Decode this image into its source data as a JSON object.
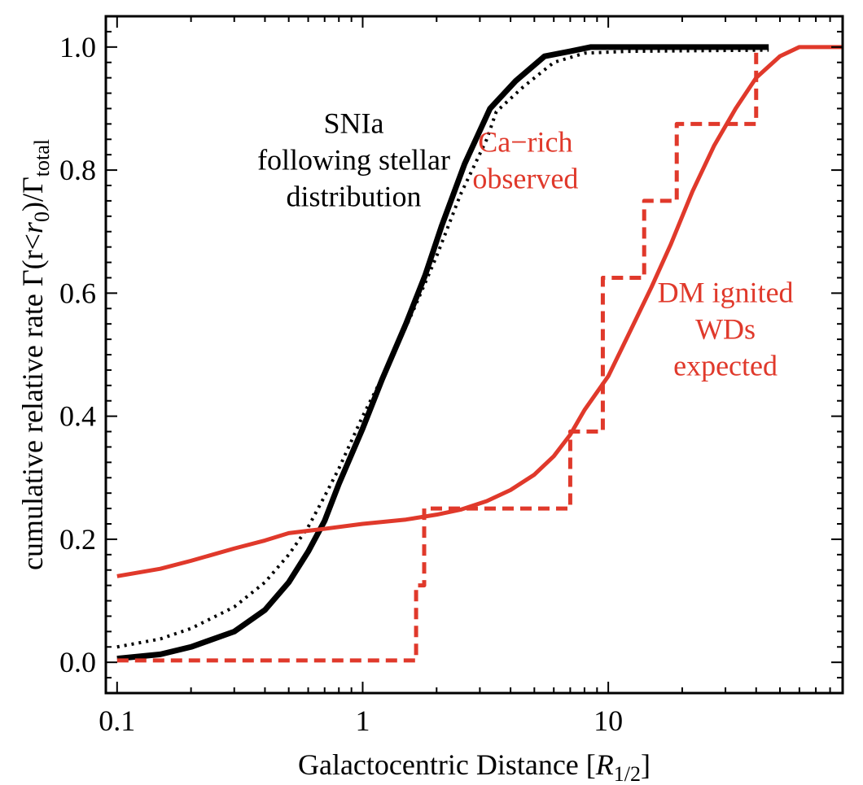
{
  "chart_data": {
    "type": "line",
    "xlabel": "Galactocentric Distance [R1/2]",
    "xlabel_parts": {
      "main": "Galactocentric Distance [",
      "var": "R",
      "sub": "1/2",
      "close": "]"
    },
    "ylabel": "cumulative relative rate Γ(r<r0)/Γtotal",
    "ylabel_parts": {
      "main": "cumulative relative rate Γ(r<",
      "var": "r",
      "sub": "0",
      "mid": ")/Γ",
      "sub2": "total"
    },
    "x_scale": "log",
    "xlim": [
      0.09,
      90
    ],
    "ylim": [
      -0.05,
      1.05
    ],
    "x_ticks": [
      {
        "value": 0.1,
        "label": "0.1"
      },
      {
        "value": 1,
        "label": "1"
      },
      {
        "value": 10,
        "label": "10"
      }
    ],
    "y_ticks": [
      {
        "value": 0.0,
        "label": "0.0"
      },
      {
        "value": 0.2,
        "label": "0.2"
      },
      {
        "value": 0.4,
        "label": "0.4"
      },
      {
        "value": 0.6,
        "label": "0.6"
      },
      {
        "value": 0.8,
        "label": "0.8"
      },
      {
        "value": 1.0,
        "label": "1.0"
      }
    ],
    "annotations": [
      {
        "id": "snia",
        "lines": [
          "SNIa",
          "following stellar",
          "distribution"
        ],
        "color": "#000000",
        "x": 0.92,
        "y": 0.86
      },
      {
        "id": "carich",
        "lines": [
          "Ca−rich",
          "observed"
        ],
        "color": "#e0392b",
        "x": 4.6,
        "y": 0.83
      },
      {
        "id": "dm",
        "lines": [
          "DM ignited",
          "WDs",
          "expected"
        ],
        "color": "#e0392b",
        "x": 30,
        "y": 0.585
      }
    ],
    "series": [
      {
        "style": "solid",
        "color": "#000000",
        "width": 7,
        "points": [
          [
            0.1,
            0.006
          ],
          [
            0.15,
            0.013
          ],
          [
            0.2,
            0.025
          ],
          [
            0.3,
            0.05
          ],
          [
            0.4,
            0.085
          ],
          [
            0.5,
            0.13
          ],
          [
            0.6,
            0.18
          ],
          [
            0.7,
            0.23
          ],
          [
            0.8,
            0.29
          ],
          [
            1.0,
            0.38
          ],
          [
            1.2,
            0.46
          ],
          [
            1.5,
            0.55
          ],
          [
            1.8,
            0.63
          ],
          [
            2.1,
            0.71
          ],
          [
            2.6,
            0.81
          ],
          [
            3.3,
            0.9
          ],
          [
            4.2,
            0.945
          ],
          [
            5.5,
            0.985
          ],
          [
            7,
            0.993
          ],
          [
            8.5,
            1.0
          ],
          [
            20,
            1.0
          ],
          [
            45,
            1.0
          ]
        ]
      },
      {
        "style": "dotted",
        "color": "#000000",
        "width": 4,
        "points": [
          [
            0.1,
            0.025
          ],
          [
            0.15,
            0.038
          ],
          [
            0.2,
            0.055
          ],
          [
            0.3,
            0.09
          ],
          [
            0.4,
            0.13
          ],
          [
            0.5,
            0.175
          ],
          [
            0.6,
            0.22
          ],
          [
            0.7,
            0.27
          ],
          [
            0.8,
            0.315
          ],
          [
            1.0,
            0.4
          ],
          [
            1.3,
            0.49
          ],
          [
            1.6,
            0.57
          ],
          [
            2.0,
            0.66
          ],
          [
            2.5,
            0.76
          ],
          [
            3.2,
            0.85
          ],
          [
            3.5,
            0.895
          ],
          [
            4.5,
            0.935
          ],
          [
            6,
            0.975
          ],
          [
            8,
            0.99
          ],
          [
            12,
            0.993
          ],
          [
            45,
            0.995
          ]
        ]
      },
      {
        "style": "solid",
        "color": "#e0392b",
        "width": 5,
        "points": [
          [
            0.1,
            0.14
          ],
          [
            0.15,
            0.152
          ],
          [
            0.2,
            0.165
          ],
          [
            0.3,
            0.185
          ],
          [
            0.4,
            0.198
          ],
          [
            0.5,
            0.21
          ],
          [
            0.7,
            0.217
          ],
          [
            1.0,
            0.225
          ],
          [
            1.5,
            0.232
          ],
          [
            2.0,
            0.24
          ],
          [
            2.5,
            0.248
          ],
          [
            3.2,
            0.262
          ],
          [
            4,
            0.28
          ],
          [
            5,
            0.305
          ],
          [
            6,
            0.335
          ],
          [
            7,
            0.37
          ],
          [
            8,
            0.41
          ],
          [
            10,
            0.465
          ],
          [
            12,
            0.53
          ],
          [
            15,
            0.61
          ],
          [
            18,
            0.68
          ],
          [
            22,
            0.765
          ],
          [
            27,
            0.84
          ],
          [
            33,
            0.9
          ],
          [
            40,
            0.95
          ],
          [
            50,
            0.985
          ],
          [
            60,
            1.0
          ],
          [
            90,
            1.0
          ]
        ]
      },
      {
        "style": "dashed",
        "color": "#e0392b",
        "width": 5,
        "points": [
          [
            0.1,
            0.003
          ],
          [
            1.65,
            0.003
          ],
          [
            1.65,
            0.125
          ],
          [
            1.78,
            0.125
          ],
          [
            1.78,
            0.25
          ],
          [
            7.0,
            0.25
          ],
          [
            7.0,
            0.375
          ],
          [
            9.5,
            0.375
          ],
          [
            9.5,
            0.625
          ],
          [
            14,
            0.625
          ],
          [
            14,
            0.75
          ],
          [
            19,
            0.75
          ],
          [
            19,
            0.875
          ],
          [
            40,
            0.875
          ],
          [
            40,
            1.0
          ]
        ]
      }
    ]
  }
}
